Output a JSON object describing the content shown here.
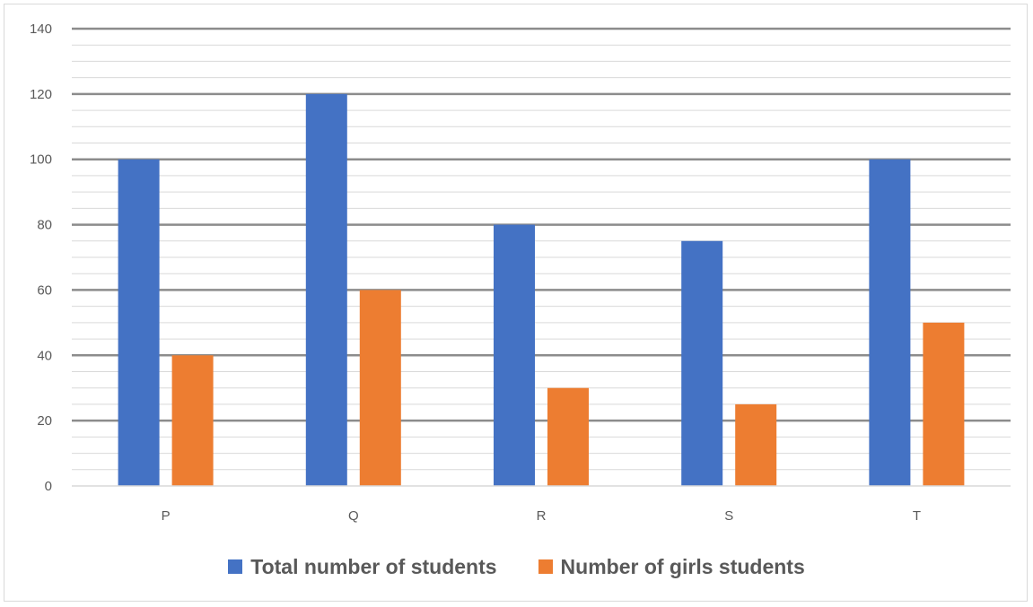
{
  "chart_data": {
    "type": "bar",
    "categories": [
      "P",
      "Q",
      "R",
      "S",
      "T"
    ],
    "series": [
      {
        "name": "Total number of students",
        "values": [
          100,
          120,
          80,
          75,
          100
        ],
        "color": "#4472c4"
      },
      {
        "name": "Number of girls students",
        "values": [
          40,
          60,
          30,
          25,
          50
        ],
        "color": "#ed7d31"
      }
    ],
    "ylim": [
      0,
      140
    ],
    "yticks": [
      0,
      20,
      40,
      60,
      80,
      100,
      120,
      140
    ],
    "minor_grid_step": 5,
    "grid": true,
    "legend_position": "bottom",
    "title": "",
    "xlabel": "",
    "ylabel": ""
  }
}
